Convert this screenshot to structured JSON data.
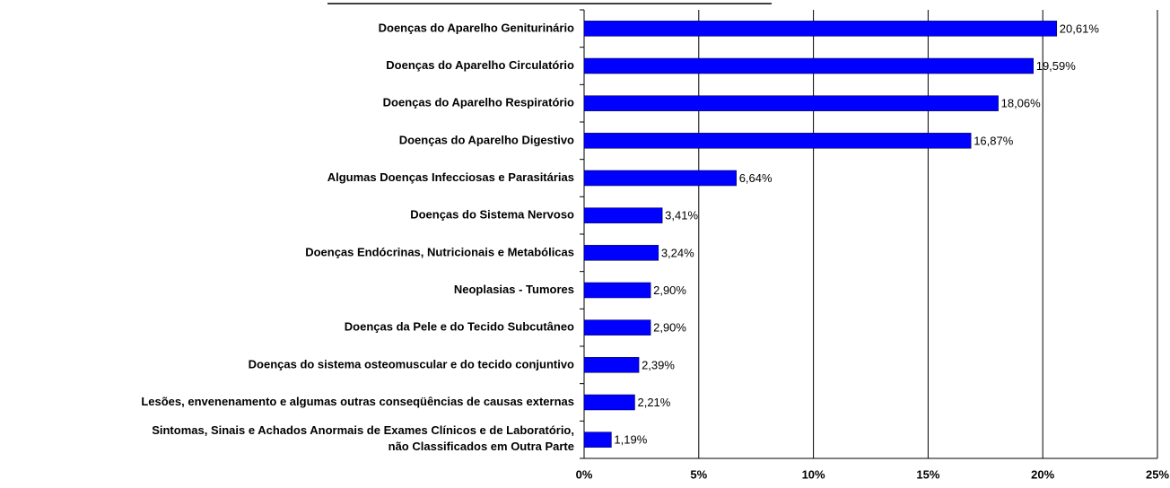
{
  "chart_data": {
    "type": "barh",
    "categories": [
      "Doenças do Aparelho Geniturinário",
      "Doenças do Aparelho Circulatório",
      "Doenças do Aparelho Respiratório",
      "Doenças do Aparelho Digestivo",
      "Algumas Doenças Infecciosas e Parasitárias",
      "Doenças do Sistema Nervoso",
      "Doenças Endócrinas, Nutricionais e Metabólicas",
      "Neoplasias - Tumores",
      "Doenças da Pele e do Tecido Subcutâneo",
      "Doenças do sistema osteomuscular e do tecido conjuntivo",
      "Lesões, envenenamento e algumas outras conseqüências de causas externas",
      "Sintomas, Sinais e Achados Anormais de Exames Clínicos e de Laboratório,\nnão Classificados em Outra Parte"
    ],
    "values": [
      20.61,
      19.59,
      18.06,
      16.87,
      6.64,
      3.41,
      3.24,
      2.9,
      2.9,
      2.39,
      2.21,
      1.19
    ],
    "value_labels": [
      "20,61%",
      "19,59%",
      "18,06%",
      "16,87%",
      "6,64%",
      "3,41%",
      "3,24%",
      "2,90%",
      "2,90%",
      "2,39%",
      "2,21%",
      "1,19%"
    ],
    "color": "#0000ff",
    "xlim": [
      0,
      25
    ],
    "xticks": [
      {
        "value": 0,
        "label": "0%"
      },
      {
        "value": 5,
        "label": "5%"
      },
      {
        "value": 10,
        "label": "10%"
      },
      {
        "value": 15,
        "label": "15%"
      },
      {
        "value": 20,
        "label": "20%"
      },
      {
        "value": 25,
        "label": "25%"
      }
    ],
    "grid": true
  }
}
